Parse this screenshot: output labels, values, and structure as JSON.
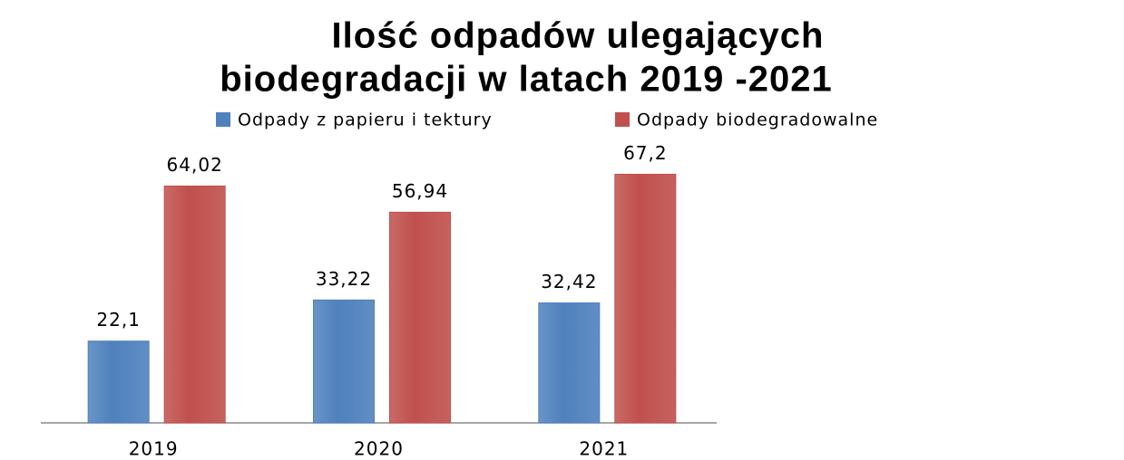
{
  "chart_data": {
    "type": "bar",
    "title": [
      "Ilość odpadów ulegających",
      "biodegradacji w latach 2019 -2021"
    ],
    "categories": [
      "2019",
      "2020",
      "2021"
    ],
    "series": [
      {
        "name": "Odpady z papieru i tektury",
        "color": "#4f81bd",
        "values": [
          22.1,
          33.22,
          32.42
        ],
        "value_labels": [
          "22,1",
          "33,22",
          "32,42"
        ]
      },
      {
        "name": "Odpady biodegradowalne",
        "color": "#c0504d",
        "values": [
          64.02,
          56.94,
          67.2
        ],
        "value_labels": [
          "64,02",
          "56,94",
          "67,2"
        ]
      }
    ],
    "ylim": [
      0,
      70
    ]
  }
}
